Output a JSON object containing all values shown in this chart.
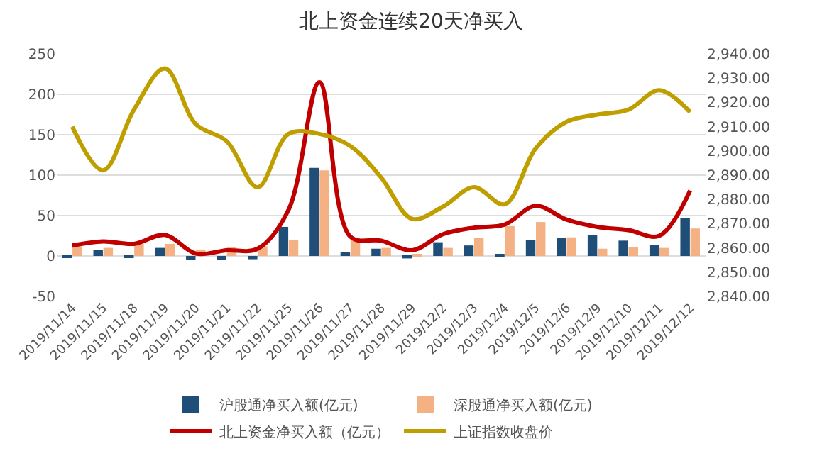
{
  "chart_data": {
    "type": "bar",
    "title": "北上资金连续20天净买入",
    "categories": [
      "2019/11/14",
      "2019/11/15",
      "2019/11/18",
      "2019/11/19",
      "2019/11/20",
      "2019/11/21",
      "2019/11/22",
      "2019/11/25",
      "2019/11/26",
      "2019/11/27",
      "2019/11/28",
      "2019/11/29",
      "2019/12/2",
      "2019/12/3",
      "2019/12/4",
      "2019/12/5",
      "2019/12/6",
      "2019/12/9",
      "2019/12/10",
      "2019/12/11",
      "2019/12/12"
    ],
    "series": [
      {
        "name": "沪股通净买入额(亿元)",
        "color": "#1f4e79",
        "values": [
          -1,
          7,
          -1,
          10,
          -5,
          -5,
          -4,
          36,
          109,
          5,
          9,
          -3,
          17,
          13,
          2,
          20,
          22,
          26,
          19,
          14,
          47
        ]
      },
      {
        "name": "深股通净买入额(亿元)",
        "color": "#f4b183",
        "values": [
          12,
          10,
          15,
          15,
          8,
          11,
          12,
          20,
          106,
          20,
          10,
          2,
          10,
          22,
          37,
          42,
          23,
          9,
          11,
          10,
          34
        ]
      },
      {
        "name": "北上资金净买入额（亿元）",
        "type": "line",
        "color": "#c00000",
        "values": [
          13,
          18,
          15,
          26,
          3,
          7,
          9,
          57,
          215,
          24,
          19,
          7,
          27,
          35,
          39,
          62,
          45,
          36,
          32,
          25,
          81
        ]
      },
      {
        "name": "上证指数收盘价",
        "type": "line",
        "axis": "y2",
        "color": "#bf9f00",
        "values": [
          2910,
          2892,
          2917,
          2934,
          2911,
          2904,
          2885,
          2907,
          2907,
          2902,
          2889,
          2872,
          2877,
          2885,
          2878,
          2901,
          2912,
          2915,
          2917,
          2925,
          2916
        ]
      }
    ],
    "ylim": [
      -50,
      250
    ],
    "yticks": [
      -50,
      0,
      50,
      100,
      150,
      200,
      250
    ],
    "y2lim": [
      2840,
      2940
    ],
    "y2ticks": [
      {
        "value": 2840,
        "label": "2,840.00"
      },
      {
        "value": 2850,
        "label": "2,850.00"
      },
      {
        "value": 2860,
        "label": "2,860.00"
      },
      {
        "value": 2870,
        "label": "2,870.00"
      },
      {
        "value": 2880,
        "label": "2,880.00"
      },
      {
        "value": 2890,
        "label": "2,890.00"
      },
      {
        "value": 2900,
        "label": "2,900.00"
      },
      {
        "value": 2910,
        "label": "2,910.00"
      },
      {
        "value": 2920,
        "label": "2,920.00"
      },
      {
        "value": 2930,
        "label": "2,930.00"
      },
      {
        "value": 2940,
        "label": "2,940.00"
      }
    ],
    "grid": "y",
    "legend": "bottom",
    "marker": "none",
    "line_style": "solid"
  }
}
